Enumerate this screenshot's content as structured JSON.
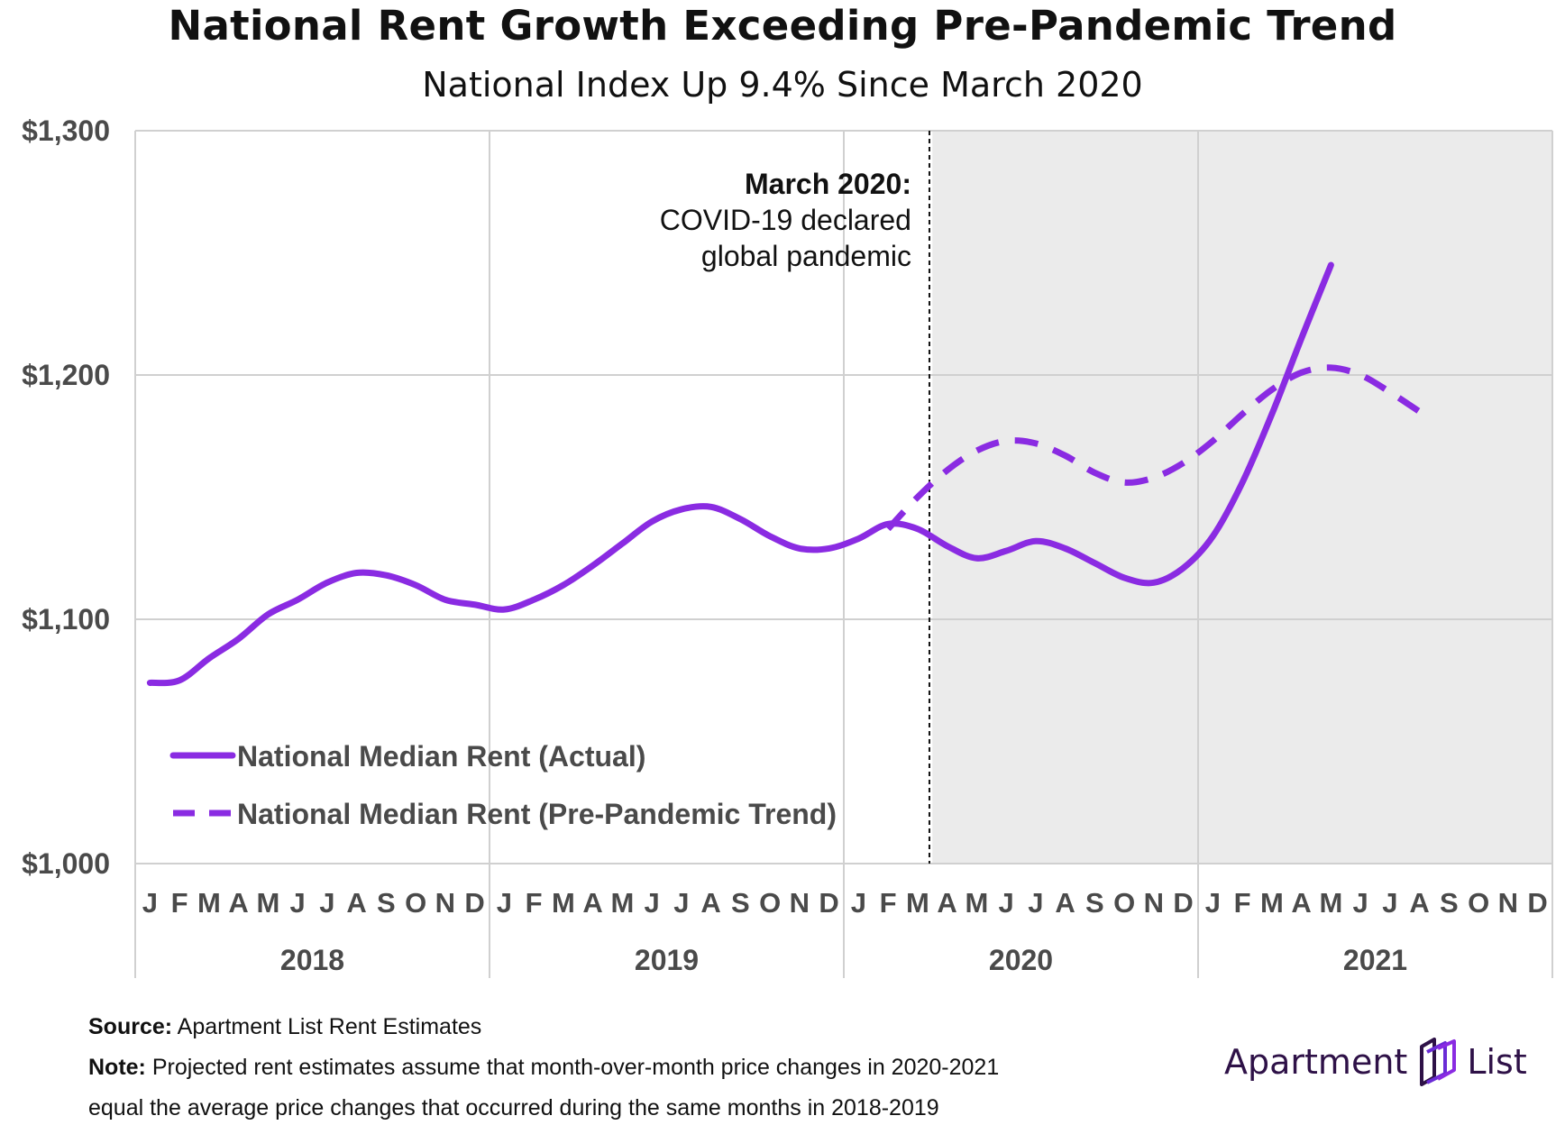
{
  "title": "National Rent Growth Exceeding Pre-Pandemic Trend",
  "subtitle": "National Index Up 9.4% Since March 2020",
  "colors": {
    "line": "#8a2be2",
    "shade": "#ebebeb",
    "grid": "#d0d0d0",
    "axis_text": "#4a4a4a"
  },
  "annotation": {
    "title": "March 2020:",
    "line1": "COVID-19 declared",
    "line2": "global pandemic"
  },
  "footer": {
    "source_label": "Source:",
    "source_text": "Apartment List Rent Estimates",
    "note_label": "Note:",
    "note_text": "Projected rent estimates assume that month-over-month price changes in 2020-2021",
    "note_text2": "equal the average price changes that occurred during the same months in 2018-2019"
  },
  "logo": {
    "text_left": "Apartment",
    "text_right": "List",
    "icon": "apartment-list-logo-icon"
  },
  "chart_data": {
    "type": "line",
    "title": "National Rent Growth Exceeding Pre-Pandemic Trend",
    "subtitle": "National Index Up 9.4% Since March 2020",
    "ylim": [
      1000,
      1300
    ],
    "yticks": [
      1000,
      1100,
      1200,
      1300
    ],
    "ytick_labels": [
      "$1,000",
      "$1,100",
      "$1,200",
      "$1,300"
    ],
    "month_labels": [
      "J",
      "F",
      "M",
      "A",
      "M",
      "J",
      "J",
      "A",
      "S",
      "O",
      "N",
      "D"
    ],
    "years": [
      "2018",
      "2019",
      "2020",
      "2021"
    ],
    "x_start": "2018-01",
    "x_end": "2021-12",
    "shaded_from": "2020-04",
    "event_marker": "2020-03",
    "grid": true,
    "legend_position": "bottom-left",
    "series": [
      {
        "name": "National Median Rent (Actual)",
        "style": "solid",
        "points": [
          [
            "2018-01",
            1074
          ],
          [
            "2018-02",
            1075
          ],
          [
            "2018-03",
            1084
          ],
          [
            "2018-04",
            1092
          ],
          [
            "2018-05",
            1102
          ],
          [
            "2018-06",
            1108
          ],
          [
            "2018-07",
            1115
          ],
          [
            "2018-08",
            1119
          ],
          [
            "2018-09",
            1118
          ],
          [
            "2018-10",
            1114
          ],
          [
            "2018-11",
            1108
          ],
          [
            "2018-12",
            1106
          ],
          [
            "2019-01",
            1104
          ],
          [
            "2019-02",
            1108
          ],
          [
            "2019-03",
            1114
          ],
          [
            "2019-04",
            1122
          ],
          [
            "2019-05",
            1131
          ],
          [
            "2019-06",
            1140
          ],
          [
            "2019-07",
            1145
          ],
          [
            "2019-08",
            1146
          ],
          [
            "2019-09",
            1141
          ],
          [
            "2019-10",
            1134
          ],
          [
            "2019-11",
            1129
          ],
          [
            "2019-12",
            1129
          ],
          [
            "2020-01",
            1133
          ],
          [
            "2020-02",
            1139
          ],
          [
            "2020-03",
            1137
          ],
          [
            "2020-04",
            1130
          ],
          [
            "2020-05",
            1125
          ],
          [
            "2020-06",
            1128
          ],
          [
            "2020-07",
            1132
          ],
          [
            "2020-08",
            1129
          ],
          [
            "2020-09",
            1123
          ],
          [
            "2020-10",
            1117
          ],
          [
            "2020-11",
            1115
          ],
          [
            "2020-12",
            1121
          ],
          [
            "2021-01",
            1134
          ],
          [
            "2021-02",
            1156
          ],
          [
            "2021-03",
            1184
          ],
          [
            "2021-04",
            1215
          ],
          [
            "2021-05",
            1245
          ]
        ]
      },
      {
        "name": "National Median Rent (Pre-Pandemic Trend)",
        "style": "dashed",
        "points": [
          [
            "2020-02",
            1137
          ],
          [
            "2020-03",
            1150
          ],
          [
            "2020-04",
            1161
          ],
          [
            "2020-05",
            1169
          ],
          [
            "2020-06",
            1173
          ],
          [
            "2020-07",
            1172
          ],
          [
            "2020-08",
            1167
          ],
          [
            "2020-09",
            1160
          ],
          [
            "2020-10",
            1156
          ],
          [
            "2020-11",
            1158
          ],
          [
            "2020-12",
            1164
          ],
          [
            "2021-01",
            1173
          ],
          [
            "2021-02",
            1184
          ],
          [
            "2021-03",
            1194
          ],
          [
            "2021-04",
            1201
          ],
          [
            "2021-05",
            1203
          ],
          [
            "2021-06",
            1200
          ],
          [
            "2021-07",
            1193
          ],
          [
            "2021-08",
            1185
          ]
        ]
      }
    ]
  }
}
